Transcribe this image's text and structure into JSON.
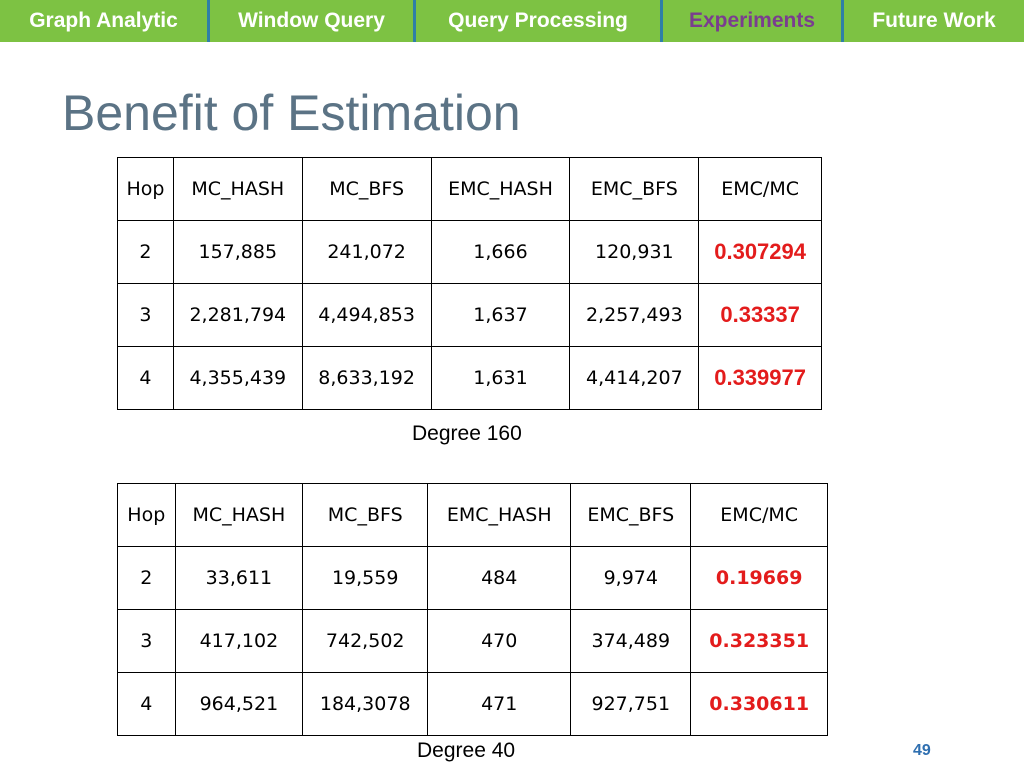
{
  "nav": {
    "tabs": [
      {
        "label": "Graph Analytic",
        "active": false
      },
      {
        "label": "Window Query",
        "active": false
      },
      {
        "label": "Query Processing",
        "active": false
      },
      {
        "label": "Experiments",
        "active": true
      },
      {
        "label": "Future Work",
        "active": false
      }
    ]
  },
  "title": "Benefit of Estimation",
  "table1": {
    "headers": [
      "Hop",
      "MC_HASH",
      "MC_BFS",
      "EMC_HASH",
      "EMC_BFS",
      "EMC/MC"
    ],
    "rows": [
      [
        "2",
        "157,885",
        "241,072",
        "1,666",
        "120,931",
        "0.307294"
      ],
      [
        "3",
        "2,281,794",
        "4,494,853",
        "1,637",
        "2,257,493",
        "0.33337"
      ],
      [
        "4",
        "4,355,439",
        "8,633,192",
        "1,631",
        "4,414,207",
        "0.339977"
      ]
    ],
    "caption": "Degree 160"
  },
  "table2": {
    "headers": [
      "Hop",
      "MC_HASH",
      "MC_BFS",
      "EMC_HASH",
      "EMC_BFS",
      "EMC/MC"
    ],
    "rows": [
      [
        "2",
        "33,611",
        "19,559",
        "484",
        "9,974",
        "0.19669"
      ],
      [
        "3",
        "417,102",
        "742,502",
        "470",
        "374,489",
        "0.323351"
      ],
      [
        "4",
        "964,521",
        "184,3078",
        "471",
        "927,751",
        "0.330611"
      ]
    ],
    "caption": "Degree 40"
  },
  "page_number": "49",
  "colors": {
    "nav_background": "#7dc243",
    "nav_active_text": "#7a3d8f",
    "nav_separator": "#2f7fa6",
    "title": "#5b7385",
    "ratio_highlight": "#e31c1c",
    "page_number": "#2f6fb0"
  }
}
